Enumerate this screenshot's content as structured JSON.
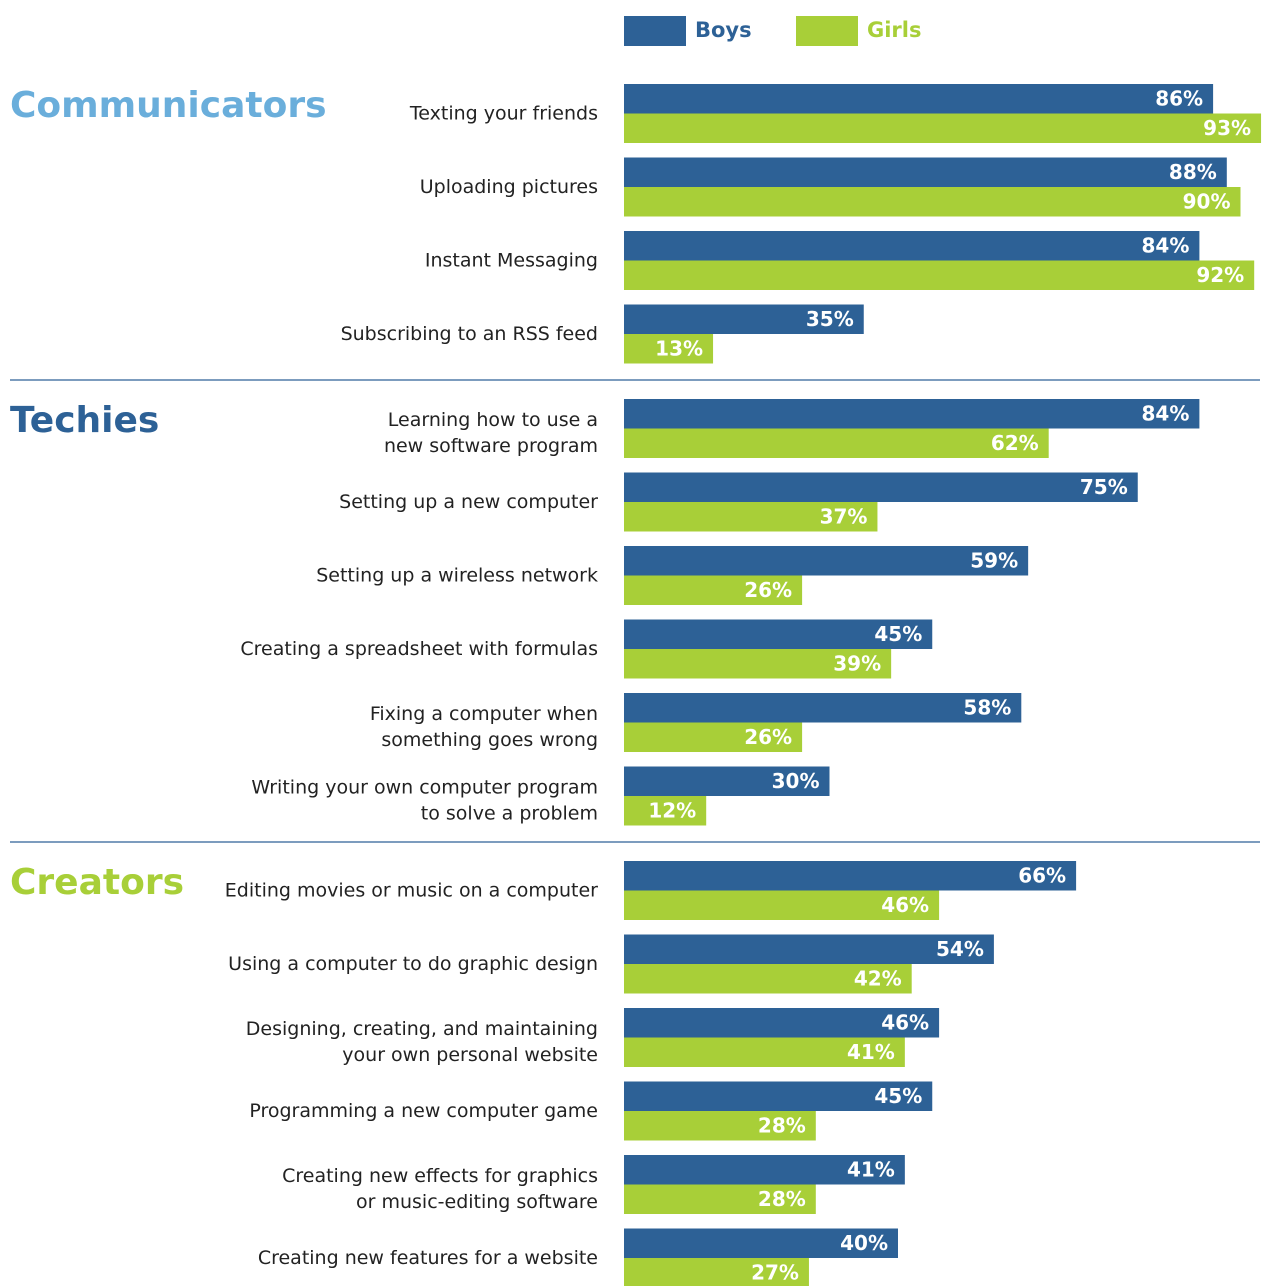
{
  "chart_data": {
    "type": "bar",
    "series": [
      {
        "name": "Boys",
        "color": "#2d6196"
      },
      {
        "name": "Girls",
        "color": "#a8cf38"
      }
    ],
    "groups": [
      {
        "name": "Communicators",
        "color": "#6aaedb",
        "categories": [
          "Texting your friends",
          "Uploading pictures",
          "Instant Messaging",
          "Subscribing to an RSS feed"
        ],
        "series": [
          {
            "values": [
              86,
              88,
              84,
              35
            ],
            "value_labels": [
              "86%",
              "88%",
              "84%",
              "35%"
            ]
          },
          {
            "values": [
              93,
              90,
              92,
              13
            ],
            "value_labels": [
              "93%",
              "90%",
              "92%",
              "13%"
            ]
          }
        ]
      },
      {
        "name": "Techies",
        "color": "#2d6196",
        "categories": [
          [
            "Learning how to use a",
            "new software program"
          ],
          "Setting up a new computer",
          "Setting up a wireless network",
          "Creating a spreadsheet with formulas",
          [
            "Fixing a computer when",
            "something goes wrong"
          ],
          [
            "Writing your own computer program",
            "to solve a problem"
          ]
        ],
        "series": [
          {
            "values": [
              84,
              75,
              59,
              45,
              58,
              30
            ],
            "value_labels": [
              "84%",
              "75%",
              "59%",
              "45%",
              "58%",
              "30%"
            ]
          },
          {
            "values": [
              62,
              37,
              26,
              39,
              26,
              12
            ],
            "value_labels": [
              "62%",
              "37%",
              "26%",
              "39%",
              "26%",
              "12%"
            ]
          }
        ]
      },
      {
        "name": "Creators",
        "color": "#a8cf38",
        "categories": [
          "Editing movies or music on a computer",
          "Using a computer to do graphic design",
          [
            "Designing, creating, and maintaining",
            "your own personal website"
          ],
          "Programming a new computer game",
          [
            "Creating new effects for graphics",
            "or music-editing software"
          ],
          "Creating new features for a website"
        ],
        "series": [
          {
            "values": [
              66,
              54,
              46,
              45,
              41,
              40
            ],
            "value_labels": [
              "66%",
              "54%",
              "46%",
              "45%",
              "41%",
              "40%"
            ]
          },
          {
            "values": [
              46,
              42,
              41,
              28,
              28,
              27
            ],
            "value_labels": [
              "46%",
              "42%",
              "41%",
              "28%",
              "28%",
              "27%"
            ]
          }
        ]
      }
    ]
  }
}
